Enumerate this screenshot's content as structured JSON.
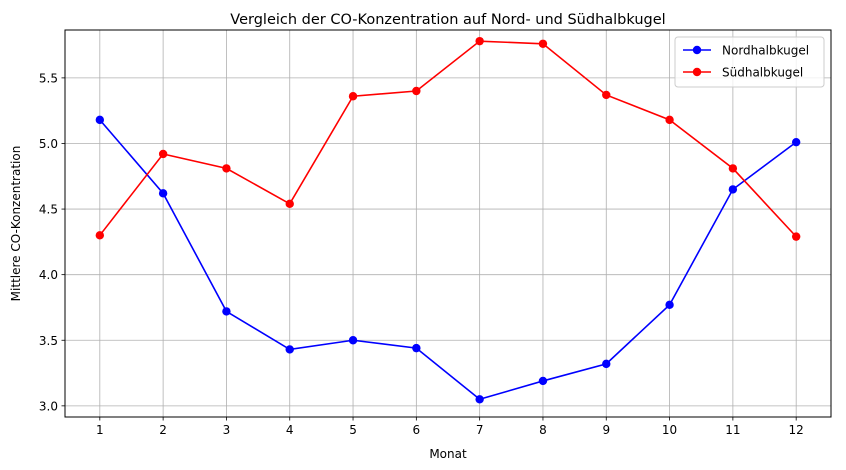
{
  "chart_data": {
    "type": "line",
    "title": "Vergleich der CO-Konzentration auf Nord- und Südhalbkugel",
    "xlabel": "Monat",
    "ylabel": "Mittlere CO-Konzentration",
    "x": [
      1,
      2,
      3,
      4,
      5,
      6,
      7,
      8,
      9,
      10,
      11,
      12
    ],
    "xticks": [
      "1",
      "2",
      "3",
      "4",
      "5",
      "6",
      "7",
      "8",
      "9",
      "10",
      "11",
      "12"
    ],
    "yticks": [
      "3.0",
      "3.5",
      "4.0",
      "4.5",
      "5.0",
      "5.5"
    ],
    "ytick_values": [
      3.0,
      3.5,
      4.0,
      4.5,
      5.0,
      5.5
    ],
    "xlim": [
      0.45,
      12.55
    ],
    "ylim": [
      2.915,
      5.865
    ],
    "grid": true,
    "legend_position": "top-right",
    "series": [
      {
        "name": "Nordhalbkugel",
        "color": "#0000ff",
        "values": [
          5.18,
          4.62,
          3.72,
          3.43,
          3.5,
          3.44,
          3.05,
          3.19,
          3.32,
          3.77,
          4.65,
          5.01
        ]
      },
      {
        "name": "Südhalbkugel",
        "color": "#ff0000",
        "values": [
          4.3,
          4.92,
          4.81,
          4.54,
          5.36,
          5.4,
          5.78,
          5.76,
          5.37,
          5.18,
          4.81,
          4.29
        ]
      }
    ]
  }
}
